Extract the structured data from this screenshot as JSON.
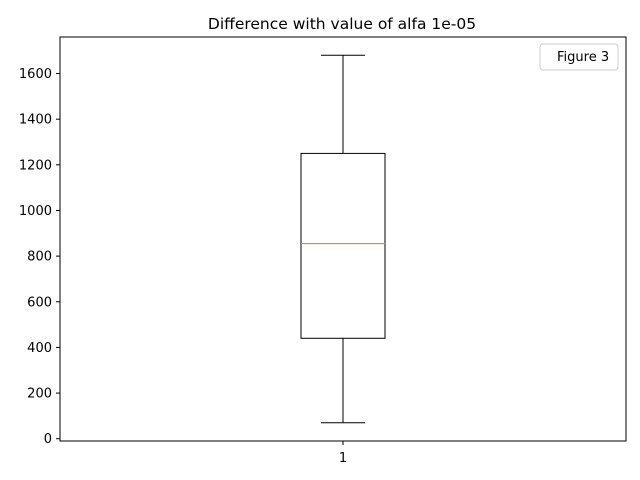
{
  "chart_data": {
    "type": "box",
    "title": "Difference with value of alfa  1e-05",
    "xlabel": "",
    "ylabel": "",
    "categories": [
      "1"
    ],
    "boxes": [
      {
        "category": "1",
        "whisker_low": 70,
        "q1": 440,
        "median": 855,
        "q3": 1250,
        "whisker_high": 1680
      }
    ],
    "ylim": [
      -10,
      1760
    ],
    "yticks": [
      0,
      200,
      400,
      600,
      800,
      1000,
      1200,
      1400,
      1600
    ],
    "ytick_labels": [
      "0",
      "200",
      "400",
      "600",
      "800",
      "1000",
      "1200",
      "1400",
      "1600"
    ],
    "grid": false,
    "legend": {
      "placement": "top-right",
      "entries": [
        "Figure 3"
      ]
    },
    "colors": {
      "box": "#000000",
      "median": "#ff7f0e",
      "whisker": "#000000"
    }
  }
}
